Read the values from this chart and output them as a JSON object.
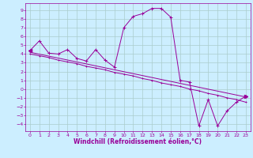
{
  "title": "",
  "xlabel": "Windchill (Refroidissement éolien,°C)",
  "bg_color": "#cceeff",
  "line_color": "#990099",
  "marker_color": "#990099",
  "xlim": [
    -0.5,
    23.5
  ],
  "ylim": [
    -4.8,
    9.8
  ],
  "yticks": [
    -4,
    -3,
    -2,
    -1,
    0,
    1,
    2,
    3,
    4,
    5,
    6,
    7,
    8,
    9
  ],
  "xticks": [
    0,
    1,
    2,
    3,
    4,
    5,
    6,
    7,
    8,
    9,
    10,
    11,
    12,
    13,
    14,
    15,
    16,
    17,
    18,
    19,
    20,
    21,
    22,
    23
  ],
  "grid_color": "#aacccc",
  "curve1_x": [
    0,
    1,
    2,
    3,
    4,
    5,
    6,
    7,
    8,
    9,
    10,
    11,
    12,
    13,
    14,
    15,
    16,
    17,
    18,
    19,
    20,
    21,
    22,
    23
  ],
  "curve1_y": [
    4.4,
    5.5,
    4.1,
    4.0,
    4.5,
    3.5,
    3.2,
    4.5,
    3.3,
    2.5,
    7.0,
    8.3,
    8.6,
    9.2,
    9.2,
    8.2,
    1.0,
    0.8,
    -4.2,
    -1.2,
    -4.2,
    -2.5,
    -1.5,
    -0.8
  ],
  "curve2_x": [
    0,
    23
  ],
  "curve2_y": [
    4.2,
    -0.9
  ],
  "curve3_x": [
    0,
    1,
    2,
    3,
    4,
    5,
    6,
    7,
    8,
    9,
    10,
    11,
    12,
    13,
    14,
    15,
    16,
    17,
    18,
    19,
    20,
    21,
    22,
    23
  ],
  "curve3_y": [
    4.0,
    3.8,
    3.6,
    3.3,
    3.1,
    2.9,
    2.6,
    2.4,
    2.2,
    1.9,
    1.7,
    1.5,
    1.2,
    1.0,
    0.7,
    0.5,
    0.3,
    0.0,
    -0.2,
    -0.5,
    -0.7,
    -1.0,
    -1.2,
    -1.5
  ],
  "xlabel_fontsize": 5.5,
  "tick_fontsize": 4.5
}
